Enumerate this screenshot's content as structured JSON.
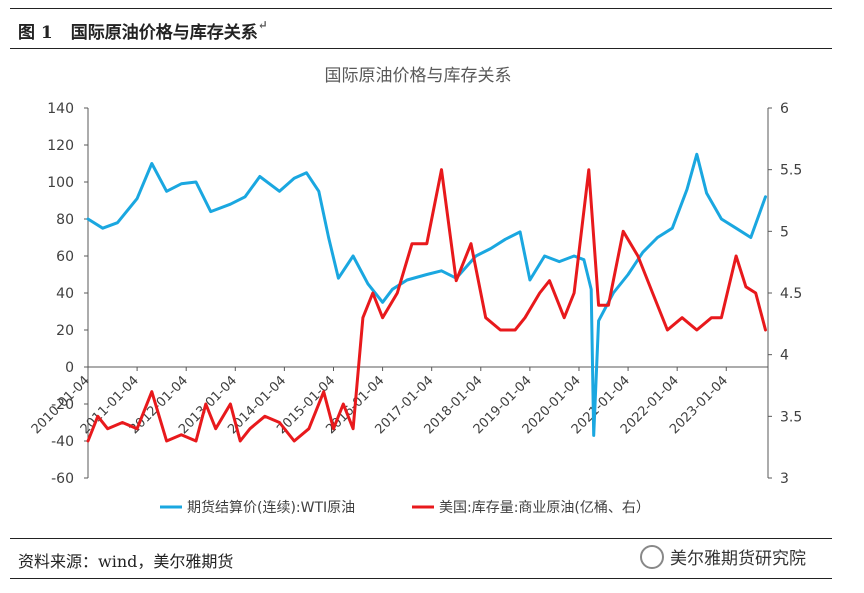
{
  "figure": {
    "number": "图 1",
    "caption": "国际原油价格与库存关系"
  },
  "source_text": "资料来源：wind，美尔雅期货",
  "brand": "美尔雅期货研究院",
  "chart_data": {
    "type": "line",
    "title": "国际原油价格与库存关系",
    "x_tick_labels": [
      "2010-01-04",
      "2011-01-04",
      "2012-01-04",
      "2013-01-04",
      "2014-01-04",
      "2015-01-04",
      "2016-01-04",
      "2017-01-04",
      "2018-01-04",
      "2019-01-04",
      "2020-01-04",
      "2021-01-04",
      "2022-01-04",
      "2023-01-04"
    ],
    "left_axis": {
      "ylim": [
        -60,
        140
      ],
      "ticks": [
        -60,
        -40,
        -20,
        0,
        20,
        40,
        60,
        80,
        100,
        120,
        140
      ]
    },
    "right_axis": {
      "ylim": [
        3,
        6
      ],
      "ticks": [
        "3",
        "3.5",
        "4",
        "4.5",
        "5",
        "5.5",
        "6"
      ]
    },
    "legend_position": "bottom",
    "grid": false,
    "series": [
      {
        "name": "期货结算价(连续):WTI原油",
        "axis": "left",
        "color": "#1aa7e0",
        "x": [
          2010.0,
          2010.3,
          2010.6,
          2011.0,
          2011.3,
          2011.6,
          2011.9,
          2012.2,
          2012.5,
          2012.9,
          2013.2,
          2013.5,
          2013.9,
          2014.2,
          2014.45,
          2014.7,
          2014.9,
          2015.1,
          2015.4,
          2015.7,
          2016.0,
          2016.2,
          2016.5,
          2016.9,
          2017.2,
          2017.5,
          2017.9,
          2018.2,
          2018.5,
          2018.8,
          2019.0,
          2019.3,
          2019.6,
          2019.9,
          2020.1,
          2020.25,
          2020.3,
          2020.4,
          2020.7,
          2021.0,
          2021.3,
          2021.6,
          2021.9,
          2022.2,
          2022.4,
          2022.6,
          2022.9,
          2023.2,
          2023.5,
          2023.8
        ],
        "values": [
          80,
          75,
          78,
          91,
          110,
          95,
          99,
          100,
          84,
          88,
          92,
          103,
          95,
          102,
          105,
          95,
          70,
          48,
          60,
          45,
          35,
          42,
          47,
          50,
          52,
          48,
          60,
          64,
          69,
          73,
          47,
          60,
          57,
          60,
          58,
          42,
          -37,
          25,
          40,
          50,
          62,
          70,
          75,
          96,
          115,
          94,
          80,
          75,
          70,
          92
        ]
      },
      {
        "name": "美国:库存量:商业原油(亿桶、右）",
        "axis": "right",
        "color": "#e8191c",
        "x": [
          2010.0,
          2010.2,
          2010.4,
          2010.7,
          2011.0,
          2011.3,
          2011.6,
          2011.9,
          2012.2,
          2012.4,
          2012.6,
          2012.9,
          2013.1,
          2013.3,
          2013.6,
          2013.9,
          2014.2,
          2014.5,
          2014.8,
          2015.0,
          2015.2,
          2015.4,
          2015.6,
          2015.8,
          2016.0,
          2016.3,
          2016.6,
          2016.9,
          2017.2,
          2017.5,
          2017.8,
          2018.1,
          2018.4,
          2018.7,
          2018.9,
          2019.2,
          2019.4,
          2019.7,
          2019.9,
          2020.2,
          2020.4,
          2020.6,
          2020.9,
          2021.2,
          2021.5,
          2021.8,
          2022.1,
          2022.4,
          2022.7,
          2022.9,
          2023.2,
          2023.4,
          2023.6,
          2023.8
        ],
        "values": [
          3.3,
          3.5,
          3.4,
          3.45,
          3.4,
          3.7,
          3.3,
          3.35,
          3.3,
          3.6,
          3.4,
          3.6,
          3.3,
          3.4,
          3.5,
          3.45,
          3.3,
          3.4,
          3.7,
          3.4,
          3.6,
          3.4,
          4.3,
          4.5,
          4.3,
          4.5,
          4.9,
          4.9,
          5.5,
          4.6,
          4.9,
          4.3,
          4.2,
          4.2,
          4.3,
          4.5,
          4.6,
          4.3,
          4.5,
          5.5,
          4.4,
          4.4,
          5.0,
          4.8,
          4.5,
          4.2,
          4.3,
          4.2,
          4.3,
          4.3,
          4.8,
          4.55,
          4.5,
          4.2
        ]
      }
    ]
  }
}
